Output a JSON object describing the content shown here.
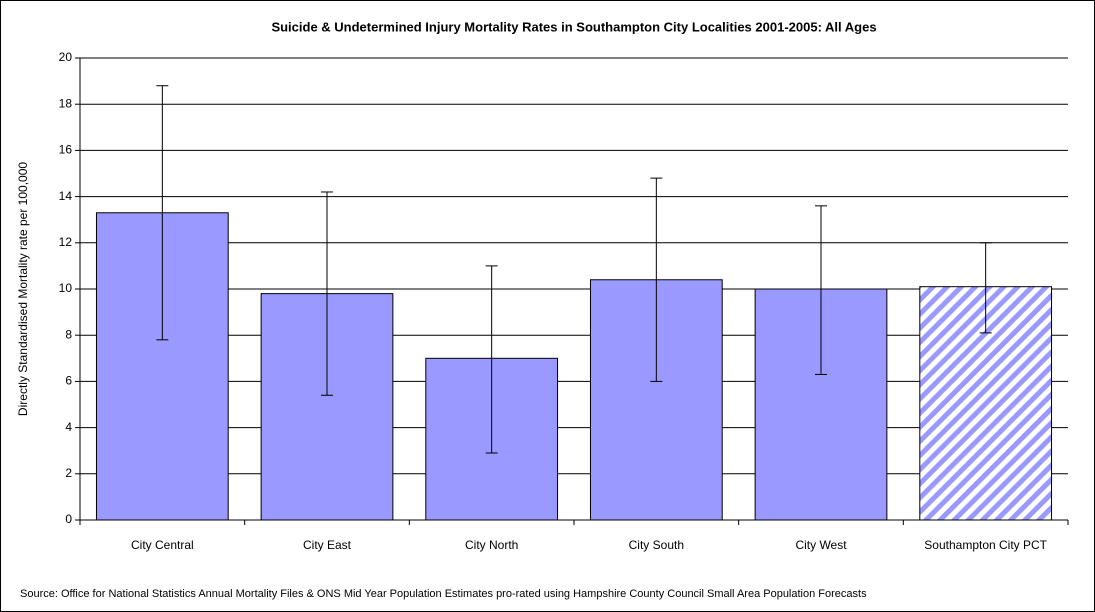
{
  "chart_data": {
    "type": "bar",
    "title": "Suicide & Undetermined Injury Mortality Rates in Southampton City Localities 2001-2005: All Ages",
    "y_label": "Directly Standardised Mortality rate per 100,000",
    "source": "Source: Office for National Statistics Annual Mortality Files & ONS Mid Year Population Estimates pro-rated using Hampshire County Council Small Area Population Forecasts",
    "categories": [
      "City Central",
      "City East",
      "City North",
      "City South",
      "City West",
      "Southampton City PCT"
    ],
    "values": [
      13.3,
      9.8,
      7.0,
      10.4,
      10.0,
      10.1
    ],
    "lower": [
      7.8,
      5.4,
      2.9,
      6.0,
      6.3,
      8.1
    ],
    "upper": [
      18.8,
      14.2,
      11.0,
      14.8,
      13.6,
      12.0
    ],
    "hatched": [
      false,
      false,
      false,
      false,
      false,
      true
    ],
    "color": "#9999ff",
    "ylim": [
      0,
      20
    ],
    "yticks": [
      0,
      2,
      4,
      6,
      8,
      10,
      12,
      14,
      16,
      18,
      20
    ],
    "grid": true
  }
}
